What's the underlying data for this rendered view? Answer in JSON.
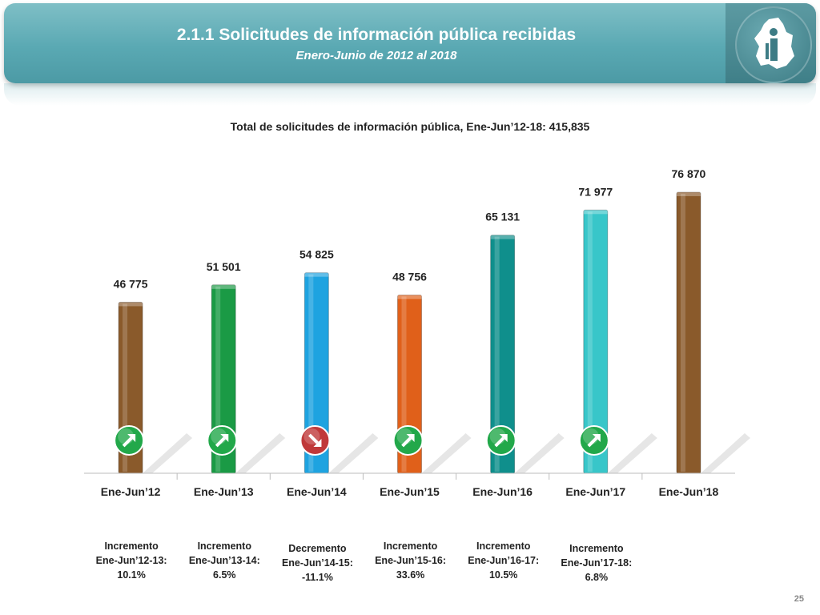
{
  "header": {
    "title": "2.1.1 Solicitudes de información pública recibidas",
    "subtitle": "Enero-Junio de 2012 al 2018"
  },
  "chart_data": {
    "type": "bar",
    "title": "Total de solicitudes de información pública, Ene-Jun’12-18: 415,835",
    "categories": [
      "Ene-Jun’12",
      "Ene-Jun’13",
      "Ene-Jun’14",
      "Ene-Jun’15",
      "Ene-Jun’16",
      "Ene-Jun’17",
      "Ene-Jun’18"
    ],
    "values": [
      46775,
      51501,
      54825,
      48756,
      65131,
      71977,
      76870
    ],
    "value_labels": [
      "46 775",
      "51 501",
      "54 825",
      "48 756",
      "65 131",
      "71 977",
      "76 870"
    ],
    "bar_colors": [
      "#8a5a2b",
      "#1a9a45",
      "#1ea3e0",
      "#e0601a",
      "#0f8f8c",
      "#38c6c9",
      "#8a5a2b"
    ],
    "ylim": [
      0,
      90000
    ],
    "grid": false,
    "trend_indicators": [
      {
        "direction": "up",
        "color": "#22a84a"
      },
      {
        "direction": "up",
        "color": "#22a84a"
      },
      {
        "direction": "down",
        "color": "#c0393a"
      },
      {
        "direction": "up",
        "color": "#22a84a"
      },
      {
        "direction": "up",
        "color": "#22a84a"
      },
      {
        "direction": "up",
        "color": "#22a84a"
      }
    ]
  },
  "notes": [
    {
      "l1": "Incremento",
      "l2": "Ene-Jun’12-13:",
      "l3": "10.1%"
    },
    {
      "l1": "Incremento",
      "l2": "Ene-Jun’13-14:",
      "l3": "6.5%"
    },
    {
      "l1": "Decremento",
      "l2": "Ene-Jun’14-15:",
      "l3": "-11.1%"
    },
    {
      "l1": "Incremento",
      "l2": "Ene-Jun’15-16:",
      "l3": "33.6%"
    },
    {
      "l1": "Incremento",
      "l2": "Ene-Jun’16-17:",
      "l3": "10.5%"
    },
    {
      "l1": "Incremento",
      "l2": "Ene-Jun’17-18:",
      "l3": "6.8%"
    }
  ],
  "page_number": "25"
}
